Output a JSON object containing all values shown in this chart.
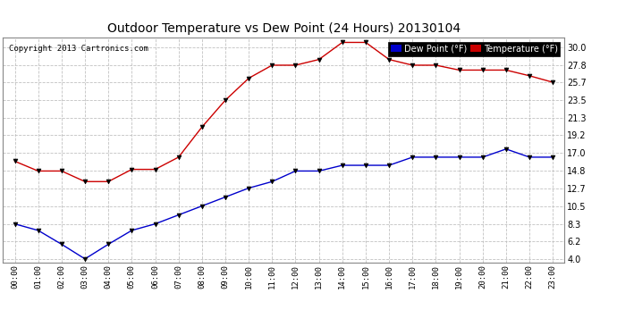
{
  "title": "Outdoor Temperature vs Dew Point (24 Hours) 20130104",
  "copyright": "Copyright 2013 Cartronics.com",
  "hours": [
    "00:00",
    "01:00",
    "02:00",
    "03:00",
    "04:00",
    "05:00",
    "06:00",
    "07:00",
    "08:00",
    "09:00",
    "10:00",
    "11:00",
    "12:00",
    "13:00",
    "14:00",
    "15:00",
    "16:00",
    "17:00",
    "18:00",
    "19:00",
    "20:00",
    "21:00",
    "22:00",
    "23:00"
  ],
  "temperature": [
    16.0,
    14.8,
    14.8,
    13.5,
    13.5,
    15.0,
    15.0,
    16.5,
    20.2,
    23.5,
    26.2,
    27.8,
    27.8,
    28.5,
    30.6,
    30.6,
    28.5,
    27.8,
    27.8,
    27.2,
    27.2,
    27.2,
    26.5,
    25.7
  ],
  "dew_point": [
    8.3,
    7.5,
    5.8,
    4.0,
    5.8,
    7.5,
    8.3,
    9.4,
    10.5,
    11.6,
    12.7,
    13.5,
    14.8,
    14.8,
    15.5,
    15.5,
    15.5,
    16.5,
    16.5,
    16.5,
    16.5,
    17.5,
    16.5,
    16.5
  ],
  "temp_color": "#cc0000",
  "dew_color": "#0000cc",
  "bg_color": "#ffffff",
  "plot_bg_color": "#ffffff",
  "grid_color": "#bbbbbb",
  "y_ticks": [
    4.0,
    6.2,
    8.3,
    10.5,
    12.7,
    14.8,
    17.0,
    19.2,
    21.3,
    23.5,
    25.7,
    27.8,
    30.0
  ],
  "ylim": [
    3.5,
    31.2
  ],
  "legend_dew_label": "Dew Point (°F)",
  "legend_temp_label": "Temperature (°F)"
}
